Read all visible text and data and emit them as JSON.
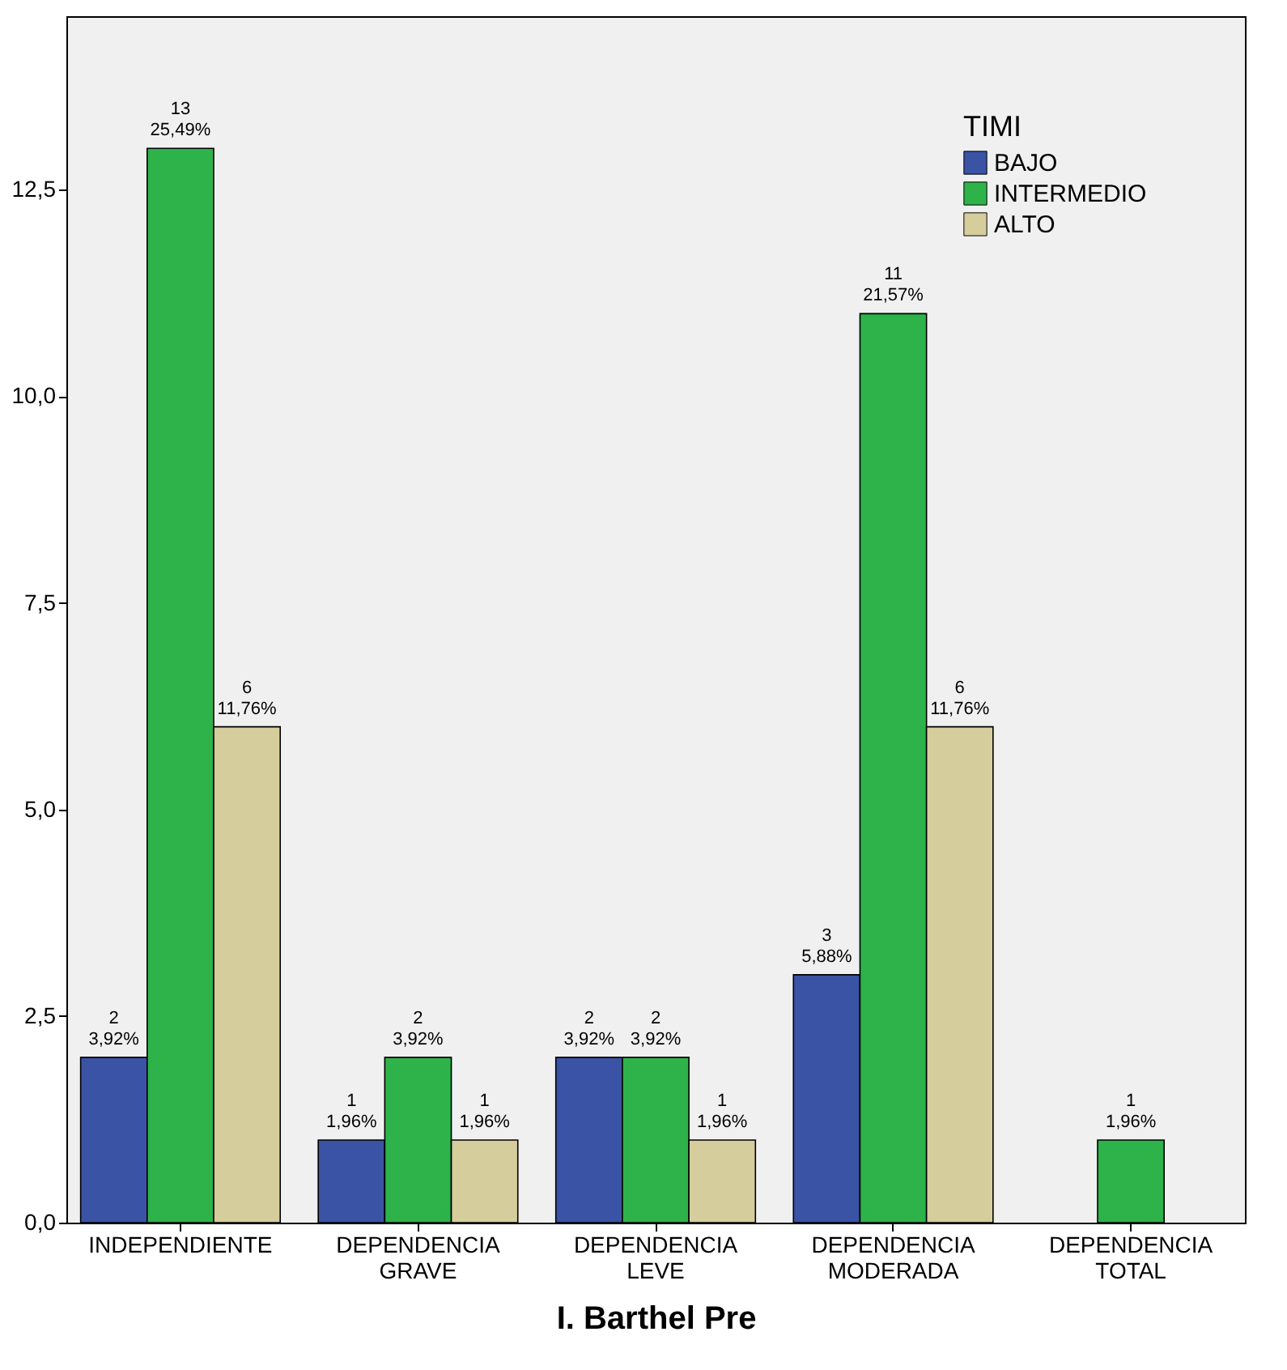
{
  "chart_data": {
    "type": "bar",
    "xlabel": "I. Barthel Pre",
    "legend_title": "TIMI",
    "legend": "top right",
    "grid": false,
    "categories": [
      "INDEPENDIENTE",
      "DEPENDENCIA GRAVE",
      "DEPENDENCIA LEVE",
      "DEPENDENCIA MODERADA",
      "DEPENDENCIA TOTAL"
    ],
    "ylim": [
      0,
      14.6
    ],
    "yticks": [
      {
        "value": 0,
        "label": "0,0"
      },
      {
        "value": 2.5,
        "label": "2,5"
      },
      {
        "value": 5,
        "label": "5,0"
      },
      {
        "value": 7.5,
        "label": "7,5"
      },
      {
        "value": 10,
        "label": "10,0"
      },
      {
        "value": 12.5,
        "label": "12,5"
      }
    ],
    "series": [
      {
        "name": "BAJO",
        "color": "#3a53a4",
        "values": [
          2,
          1,
          2,
          3,
          null
        ],
        "value_labels": [
          "2\n3,92%",
          "1\n1,96%",
          "2\n3,92%",
          "3\n5,88%",
          null
        ]
      },
      {
        "name": "INTERMEDIO",
        "color": "#2db34a",
        "values": [
          13,
          2,
          2,
          11,
          1
        ],
        "value_labels": [
          "13\n25,49%",
          "2\n3,92%",
          "2\n3,92%",
          "11\n21,57%",
          "1\n1,96%"
        ]
      },
      {
        "name": "ALTO",
        "color": "#d5cd9c",
        "values": [
          6,
          1,
          1,
          6,
          null
        ],
        "value_labels": [
          "6\n11,76%",
          "1\n1,96%",
          "1\n1,96%",
          "6\n11,76%",
          null
        ]
      }
    ]
  }
}
